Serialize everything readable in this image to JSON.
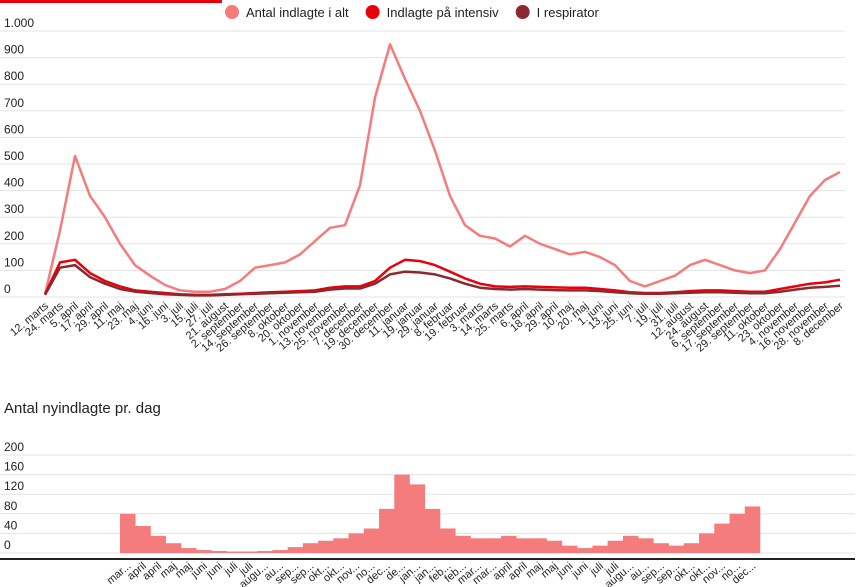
{
  "chart_data": [
    {
      "type": "line",
      "categories": [
        "12. marts",
        "24. marts",
        "5. april",
        "17. april",
        "29. april",
        "11. maj",
        "23. maj",
        "4. juni",
        "16. juni",
        "3. juli",
        "15. juli",
        "27. juli",
        "21. august",
        "2. september",
        "14. september",
        "26. september",
        "8. oktober",
        "20. oktober",
        "1. november",
        "13. november",
        "25. november",
        "7. december",
        "19. december",
        "30. december",
        "11. januar",
        "19. januar",
        "29. januar",
        "8. februar",
        "19. februar",
        "3. marts",
        "14. marts",
        "25. marts",
        "6. april",
        "18. april",
        "29. april",
        "10. maj",
        "20. maj",
        "1. juni",
        "13. juni",
        "25. juni",
        "7. juli",
        "19. juli",
        "31. juli",
        "12. august",
        "24. august",
        "6. september",
        "17. september",
        "29. september",
        "11. oktober",
        "23. oktober",
        "4. november",
        "16. november",
        "28. november",
        "8. december"
      ],
      "series": [
        {
          "name": "Antal indlagte i alt",
          "color": "#f47c7c",
          "values": [
            10,
            250,
            530,
            380,
            300,
            200,
            120,
            80,
            45,
            25,
            20,
            20,
            30,
            60,
            110,
            120,
            130,
            160,
            210,
            260,
            270,
            420,
            750,
            950,
            820,
            700,
            550,
            380,
            270,
            230,
            220,
            190,
            230,
            200,
            180,
            160,
            170,
            150,
            120,
            60,
            40,
            60,
            80,
            120,
            140,
            120,
            100,
            90,
            100,
            180,
            280,
            380,
            440,
            470
          ]
        },
        {
          "name": "Indlagte på intensiv",
          "color": "#e8000b",
          "values": [
            10,
            130,
            140,
            90,
            60,
            40,
            25,
            20,
            15,
            10,
            8,
            8,
            10,
            12,
            15,
            18,
            20,
            22,
            25,
            35,
            40,
            40,
            60,
            110,
            140,
            135,
            120,
            95,
            70,
            50,
            40,
            38,
            40,
            38,
            36,
            35,
            35,
            30,
            25,
            18,
            15,
            15,
            18,
            22,
            25,
            25,
            22,
            20,
            20,
            30,
            40,
            50,
            55,
            65
          ]
        },
        {
          "name": "I respirator",
          "color": "#8b2a2e",
          "values": [
            8,
            110,
            120,
            75,
            50,
            30,
            20,
            15,
            10,
            8,
            6,
            6,
            8,
            10,
            12,
            14,
            16,
            18,
            20,
            28,
            32,
            32,
            50,
            85,
            95,
            92,
            85,
            70,
            50,
            35,
            30,
            28,
            30,
            28,
            26,
            25,
            25,
            22,
            18,
            14,
            12,
            12,
            14,
            16,
            18,
            18,
            16,
            14,
            14,
            20,
            28,
            35,
            38,
            42
          ]
        }
      ],
      "ylim": [
        0,
        1000
      ],
      "yticks": [
        0,
        100,
        200,
        300,
        400,
        500,
        600,
        700,
        800,
        900,
        {
          "value": 1000,
          "label": "1.000"
        }
      ],
      "grid": true,
      "legend": "top"
    },
    {
      "type": "bar",
      "title": "Antal nyindlagte pr. dag",
      "categories": [
        "mar...",
        "april",
        "april",
        "maj",
        "maj",
        "juni",
        "juni",
        "juli",
        "juli",
        "augu...",
        "au...",
        "sep...",
        "sep...",
        "okt...",
        "okt...",
        "nov...",
        "no...",
        "dec...",
        "de...",
        "jan...",
        "jan...",
        "feb...",
        "feb...",
        "mar...",
        "mar...",
        "april",
        "april",
        "maj",
        "maj",
        "juni",
        "juni",
        "juli",
        "juli",
        "augu...",
        "au...",
        "sep...",
        "sep...",
        "okt...",
        "okt...",
        "nov...",
        "no...",
        "dec..."
      ],
      "values": [
        80,
        55,
        35,
        20,
        10,
        6,
        4,
        3,
        3,
        4,
        6,
        12,
        20,
        25,
        30,
        40,
        50,
        90,
        160,
        140,
        90,
        50,
        35,
        30,
        30,
        35,
        30,
        30,
        25,
        15,
        10,
        15,
        25,
        35,
        30,
        20,
        15,
        20,
        40,
        60,
        80,
        95
      ],
      "color": "#f47c7c",
      "ylim": [
        0,
        200
      ],
      "yticks": [
        0,
        40,
        80,
        120,
        160,
        200
      ],
      "grid": true
    }
  ]
}
